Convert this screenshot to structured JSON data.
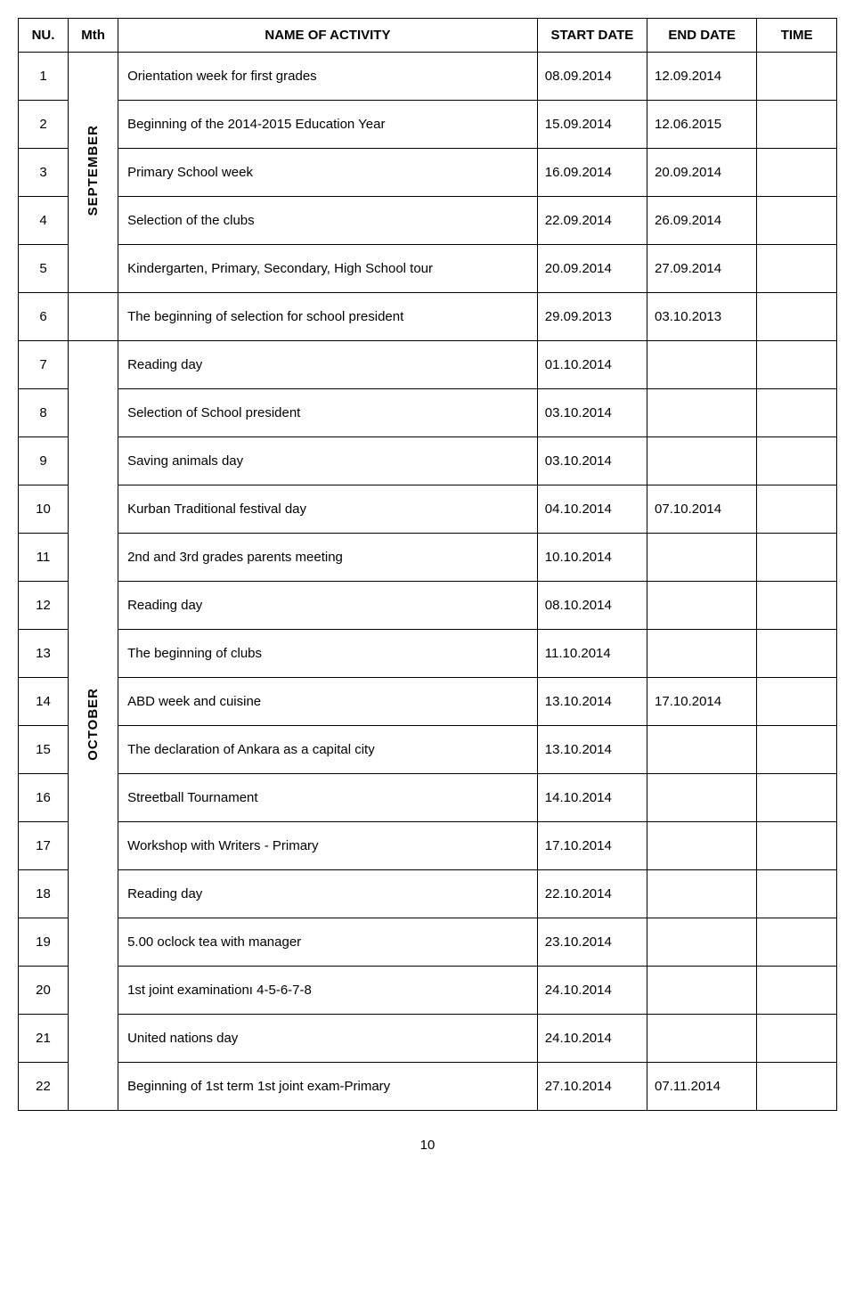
{
  "header": {
    "nu": "NU.",
    "mth": "Mth",
    "name": "NAME OF ACTIVITY",
    "start": "START DATE",
    "end": "END DATE",
    "time": "TIME"
  },
  "months": {
    "sep": "SEPTEMBER",
    "oct": "OCTOBER"
  },
  "rows": [
    {
      "nu": "1",
      "name": "Orientation week for first grades",
      "start": "08.09.2014",
      "end": "12.09.2014"
    },
    {
      "nu": "2",
      "name": "Beginning of the 2014-2015 Education Year",
      "start": "15.09.2014",
      "end": "12.06.2015"
    },
    {
      "nu": "3",
      "name": "Primary School week",
      "start": "16.09.2014",
      "end": "20.09.2014"
    },
    {
      "nu": "4",
      "name": "Selection of the clubs",
      "start": "22.09.2014",
      "end": "26.09.2014"
    },
    {
      "nu": "5",
      "name": "Kindergarten, Primary, Secondary, High School tour",
      "start": "20.09.2014",
      "end": "27.09.2014"
    },
    {
      "nu": "6",
      "name": "The beginning of selection for school president",
      "start": "29.09.2013",
      "end": "03.10.2013"
    },
    {
      "nu": "7",
      "name": "Reading day",
      "start": "01.10.2014",
      "end": ""
    },
    {
      "nu": "8",
      "name": "Selection of School president",
      "start": "03.10.2014",
      "end": ""
    },
    {
      "nu": "9",
      "name": "Saving animals day",
      "start": "03.10.2014",
      "end": ""
    },
    {
      "nu": "10",
      "name": "Kurban Traditional festival day",
      "start": "04.10.2014",
      "end": "07.10.2014"
    },
    {
      "nu": "11",
      "name": "2nd and 3rd grades parents meeting",
      "start": "10.10.2014",
      "end": ""
    },
    {
      "nu": "12",
      "name": "Reading day",
      "start": "08.10.2014",
      "end": ""
    },
    {
      "nu": "13",
      "name": "The beginning of clubs",
      "start": "11.10.2014",
      "end": ""
    },
    {
      "nu": "14",
      "name": "ABD week and cuisine",
      "start": "13.10.2014",
      "end": "17.10.2014"
    },
    {
      "nu": "15",
      "name": "The declaration of Ankara as a capital city",
      "start": "13.10.2014",
      "end": ""
    },
    {
      "nu": "16",
      "name": "Streetball Tournament",
      "start": "14.10.2014",
      "end": ""
    },
    {
      "nu": "17",
      "name": "Workshop with Writers - Primary",
      "start": "17.10.2014",
      "end": ""
    },
    {
      "nu": "18",
      "name": "Reading day",
      "start": "22.10.2014",
      "end": ""
    },
    {
      "nu": "19",
      "name": "5.00 oclock tea with manager",
      "start": "23.10.2014",
      "end": ""
    },
    {
      "nu": "20",
      "name": "1st joint examinationı 4-5-6-7-8",
      "start": "24.10.2014",
      "end": ""
    },
    {
      "nu": "21",
      "name": "United nations day",
      "start": "24.10.2014",
      "end": ""
    },
    {
      "nu": "22",
      "name": "Beginning of 1st term 1st joint exam-Primary",
      "start": "27.10.2014",
      "end": "07.11.2014"
    }
  ],
  "page_number": "10",
  "style": {
    "font_family": "Verdana, Tahoma, sans-serif",
    "font_size_pt": 11,
    "border_color": "#000000",
    "background": "#ffffff",
    "text_color": "#000000"
  }
}
